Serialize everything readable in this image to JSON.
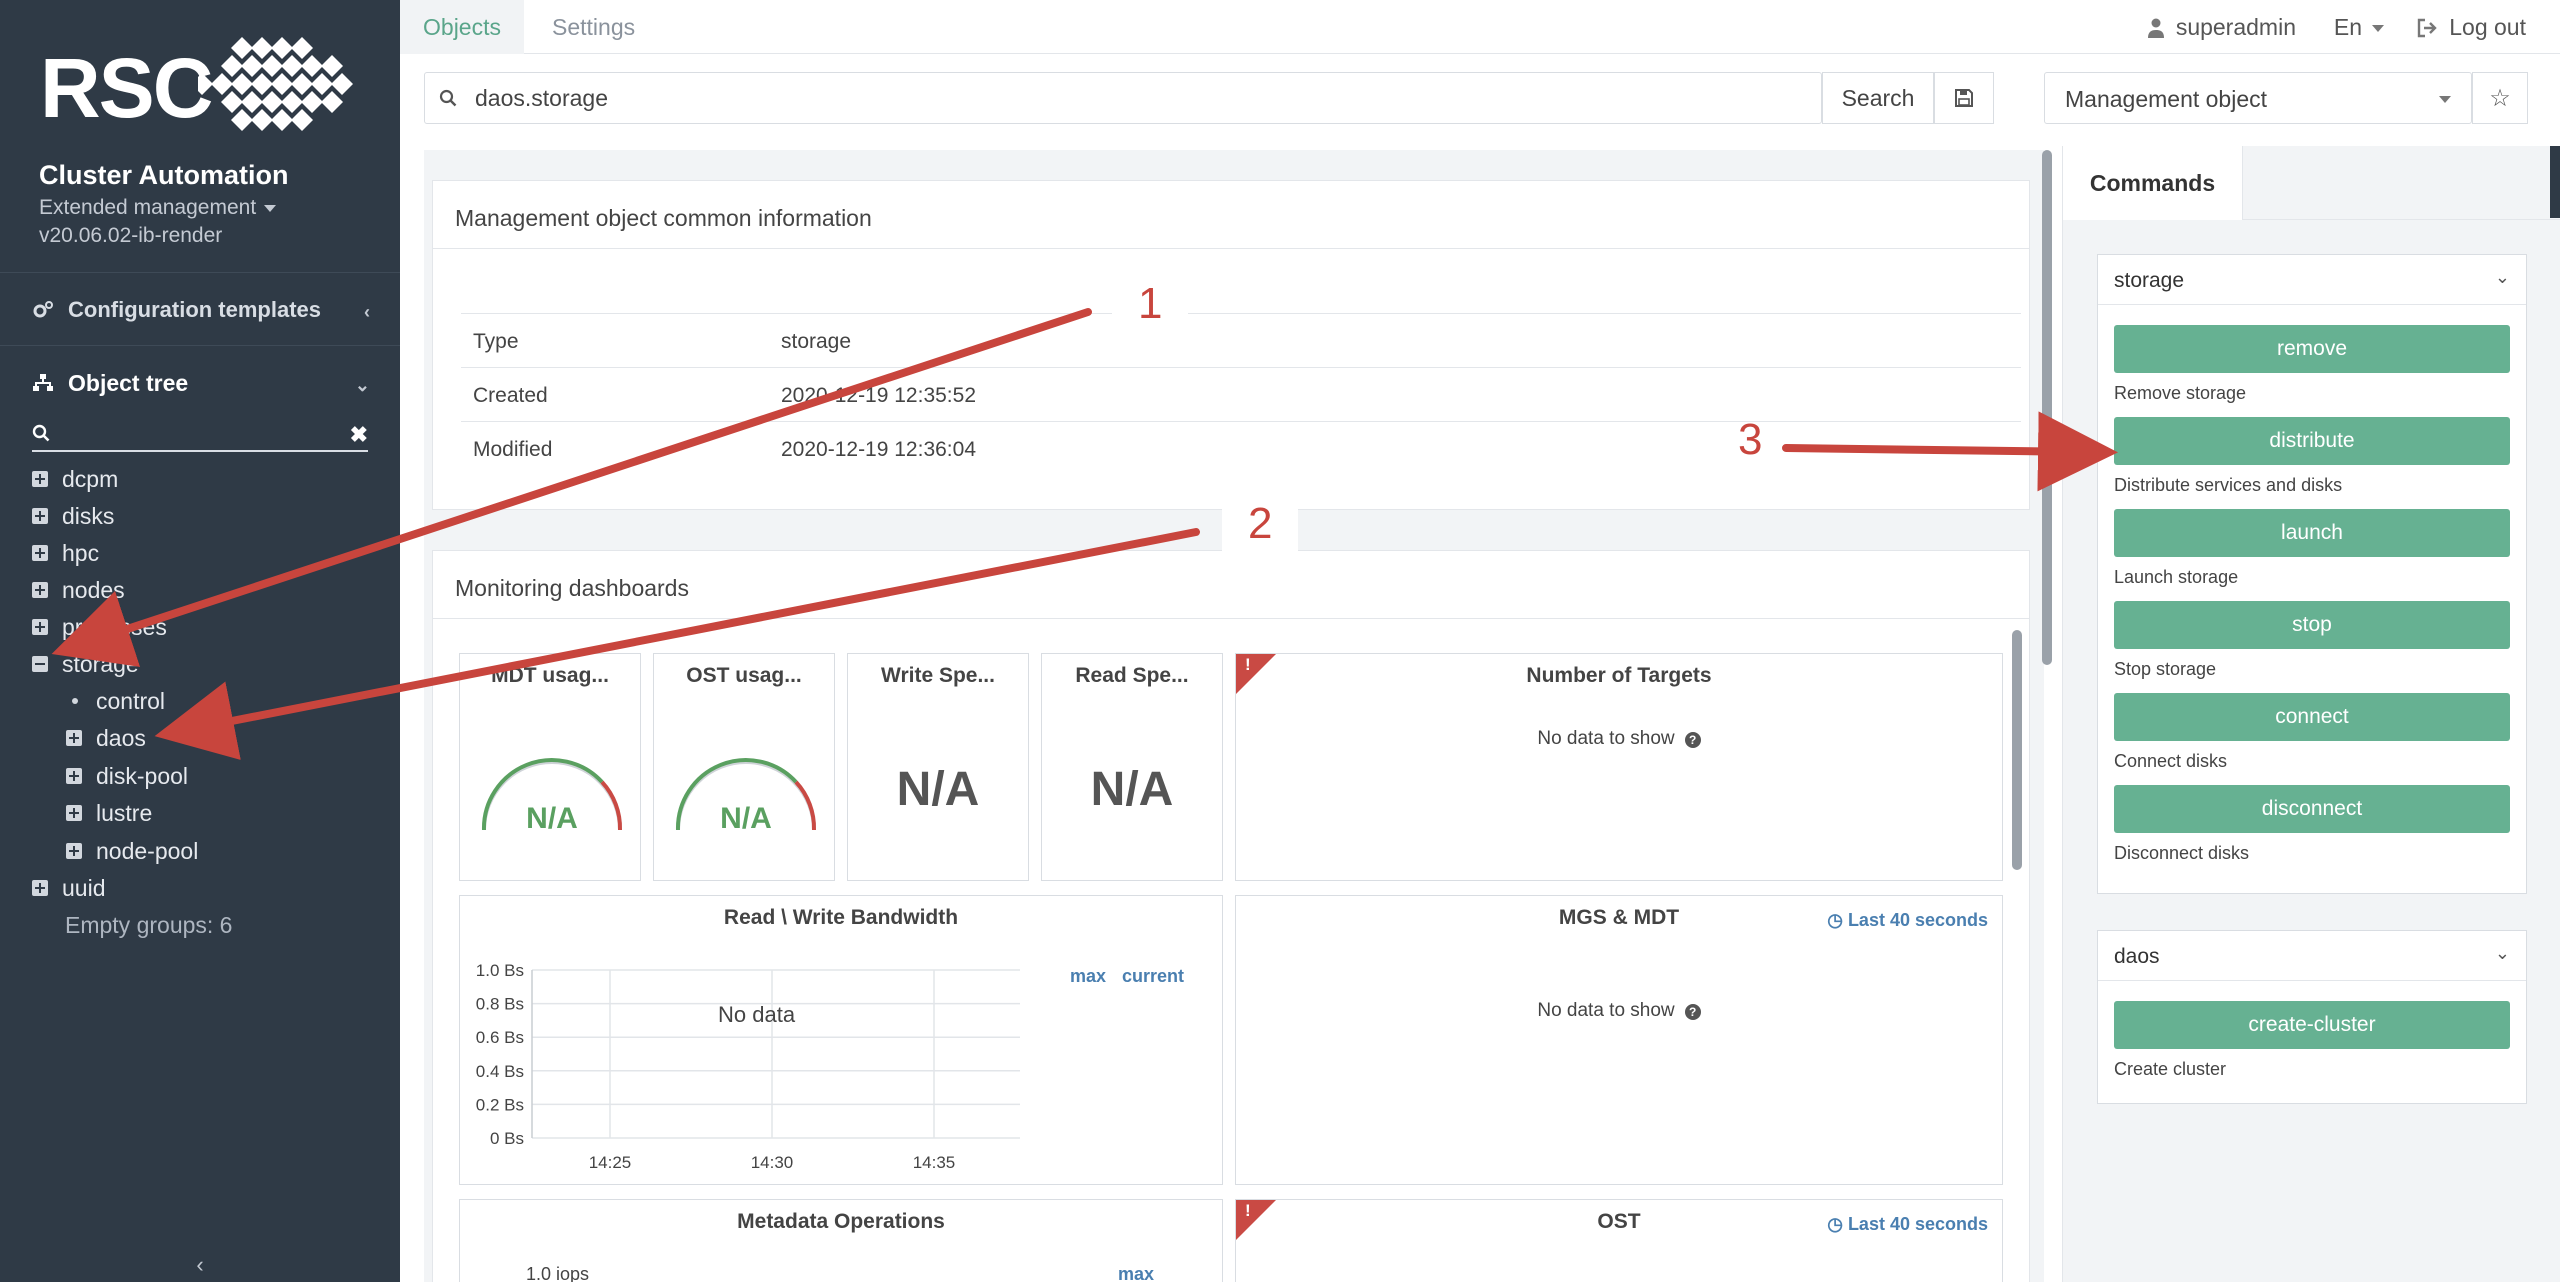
{
  "brand": {
    "logo_text": "RSC",
    "title": "Cluster Automation",
    "subtitle": "Extended management",
    "version": "v20.06.02-ib-render"
  },
  "sidebar": {
    "config_label": "Configuration templates",
    "tree_label": "Object tree",
    "search_value": "",
    "items": [
      {
        "label": "dcpm",
        "state": "collapsed"
      },
      {
        "label": "disks",
        "state": "collapsed"
      },
      {
        "label": "hpc",
        "state": "collapsed"
      },
      {
        "label": "nodes",
        "state": "collapsed"
      },
      {
        "label": "processes",
        "state": "collapsed"
      },
      {
        "label": "storage",
        "state": "expanded"
      },
      {
        "label": "control",
        "state": "leaf"
      },
      {
        "label": "daos",
        "state": "collapsed"
      },
      {
        "label": "disk-pool",
        "state": "collapsed"
      },
      {
        "label": "lustre",
        "state": "collapsed"
      },
      {
        "label": "node-pool",
        "state": "collapsed"
      },
      {
        "label": "uuid",
        "state": "collapsed"
      }
    ],
    "empty_groups": "Empty groups: 6"
  },
  "topnav": {
    "tabs": [
      {
        "label": "Objects",
        "active": true
      },
      {
        "label": "Settings",
        "active": false
      }
    ],
    "user": "superadmin",
    "lang": "En",
    "logout": "Log out"
  },
  "search": {
    "value": "daos.storage",
    "button": "Search",
    "object_type": "Management object"
  },
  "info": {
    "title": "Management object common information",
    "rows": [
      {
        "key": "Type",
        "value": "storage"
      },
      {
        "key": "Created",
        "value": "2020-12-19 12:35:52"
      },
      {
        "key": "Modified",
        "value": "2020-12-19 12:36:04"
      }
    ]
  },
  "monitoring": {
    "title": "Monitoring dashboards",
    "cards": {
      "mdt": {
        "title": "MDT usag...",
        "value": "N/A"
      },
      "ost": {
        "title": "OST usag...",
        "value": "N/A"
      },
      "write": {
        "title": "Write Spe...",
        "value": "N/A"
      },
      "read": {
        "title": "Read Spe...",
        "value": "N/A"
      },
      "targets": {
        "title": "Number of Targets",
        "empty": "No data to show"
      },
      "bandwidth": {
        "title": "Read \\ Write Bandwidth",
        "empty": "No data",
        "legend_max": "max",
        "legend_current": "current"
      },
      "mgs": {
        "title": "MGS & MDT",
        "empty": "No data to show",
        "range": "Last 40 seconds"
      },
      "metadata": {
        "title": "Metadata Operations",
        "first_tick": "1.0 iops",
        "legend_max": "max"
      },
      "ost_panel": {
        "title": "OST",
        "range": "Last 40 seconds"
      }
    }
  },
  "chart_data": {
    "type": "line",
    "title": "Read \\ Write Bandwidth",
    "x": [
      "14:25",
      "14:30",
      "14:35"
    ],
    "y_ticks": [
      "1.0 Bs",
      "0.8 Bs",
      "0.6 Bs",
      "0.4 Bs",
      "0.2 Bs",
      "0 Bs"
    ],
    "ylim": [
      0,
      1.0
    ],
    "series": [],
    "legend": [
      "max",
      "current"
    ],
    "grid": true
  },
  "commands": {
    "tab_label": "Commands",
    "groups": [
      {
        "name": "storage",
        "commands": [
          {
            "label": "remove",
            "desc": "Remove storage"
          },
          {
            "label": "distribute",
            "desc": "Distribute services and disks"
          },
          {
            "label": "launch",
            "desc": "Launch storage"
          },
          {
            "label": "stop",
            "desc": "Stop storage"
          },
          {
            "label": "connect",
            "desc": "Connect disks"
          },
          {
            "label": "disconnect",
            "desc": "Disconnect disks"
          }
        ]
      },
      {
        "name": "daos",
        "commands": [
          {
            "label": "create-cluster",
            "desc": "Create cluster"
          }
        ]
      }
    ]
  },
  "annotations": {
    "one": "1",
    "two": "2",
    "three": "3",
    "color": "#c8453d"
  },
  "colors": {
    "sidebar": "#2f3a46",
    "accent": "#66b192",
    "link": "#4a7fb0",
    "warning": "#c94a44"
  }
}
